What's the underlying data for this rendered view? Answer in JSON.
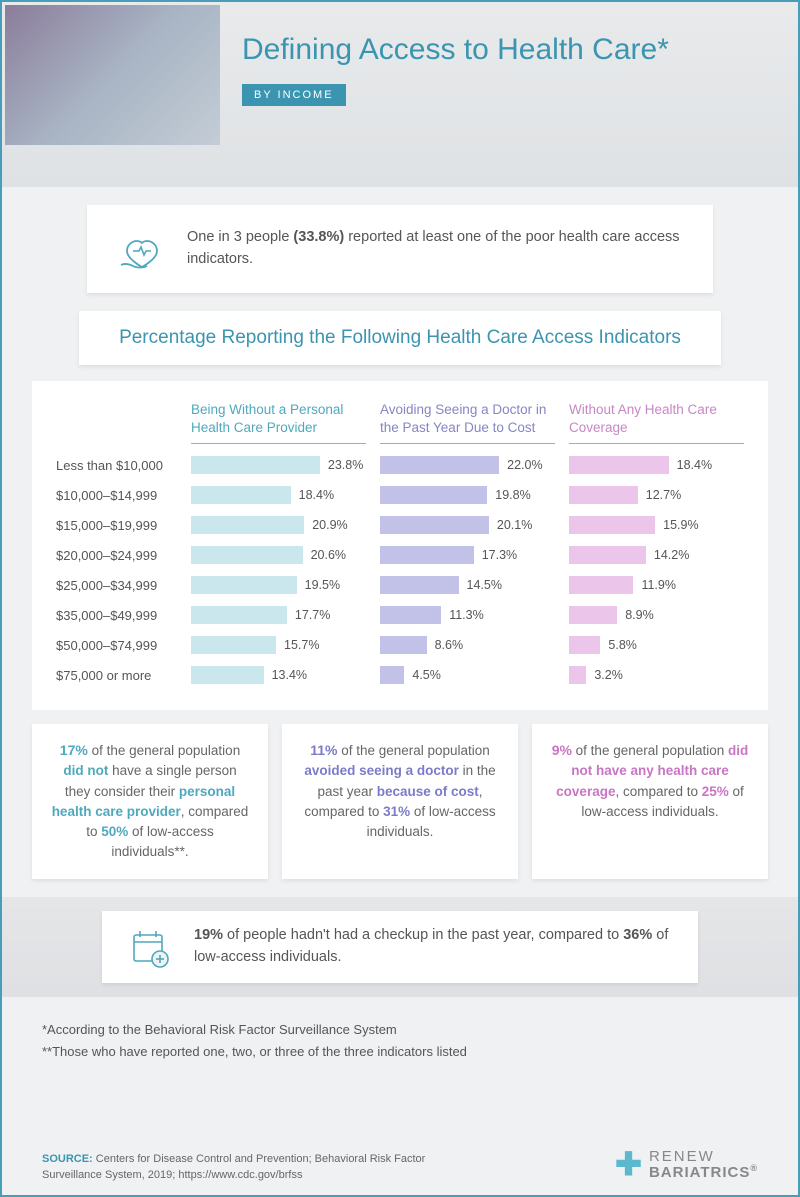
{
  "title": "Defining Access to Health Care*",
  "tag": "BY INCOME",
  "callout1_html": "One in 3 people <b>(33.8%)</b> reported at least one of the poor health care access indicators.",
  "section_title": "Percentage Reporting the Following Health Care Access Indicators",
  "chart": {
    "max_scale": 24,
    "columns": [
      {
        "label": "Being Without a Personal Health Care Provider",
        "bar_color": "#c9e7ed",
        "text_color": "#4fa8bd"
      },
      {
        "label": "Avoiding Seeing a Doctor in the Past Year Due to Cost",
        "bar_color": "#c2c2e8",
        "text_color": "#8585c7"
      },
      {
        "label": "Without Any Health Care Coverage",
        "bar_color": "#ecc6ea",
        "text_color": "#c787c4"
      }
    ],
    "rows": [
      {
        "label": "Less than $10,000",
        "values": [
          23.8,
          22.0,
          18.4
        ]
      },
      {
        "label": "$10,000–$14,999",
        "values": [
          18.4,
          19.8,
          12.7
        ]
      },
      {
        "label": "$15,000–$19,999",
        "values": [
          20.9,
          20.1,
          15.9
        ]
      },
      {
        "label": "$20,000–$24,999",
        "values": [
          20.6,
          17.3,
          14.2
        ]
      },
      {
        "label": "$25,000–$34,999",
        "values": [
          19.5,
          14.5,
          11.9
        ]
      },
      {
        "label": "$35,000–$49,999",
        "values": [
          17.7,
          11.3,
          8.9
        ]
      },
      {
        "label": "$50,000–$74,999",
        "values": [
          15.7,
          8.6,
          5.8
        ]
      },
      {
        "label": "$75,000 or more",
        "values": [
          13.4,
          4.5,
          3.2
        ]
      }
    ]
  },
  "stats": [
    "<span class='big c-teal'>17%</span> of the general population <b class='c-teal'>did not</b> have a single person they consider their <b class='c-teal'>personal health care provider</b>, compared to <b class='c-teal'>50%</b> of low-access individuals**.",
    "<span class='big c-purple'>11%</span> of the general population <b class='c-purple'>avoided seeing a doctor</b> in the past year <b class='c-purple'>because of cost</b>, compared to <b class='c-purple'>31%</b> of low-access individuals.",
    "<span class='big c-pink'>9%</span> of the general population <b class='c-pink'>did not have any health care coverage</b>, compared to <b class='c-pink'>25%</b> of low-access individuals."
  ],
  "checkup_html": "<b>19%</b> of people hadn't had a checkup in the past year, compared to <b>36%</b> of low-access individuals.",
  "footnote1": "*According to the Behavioral Risk Factor Surveillance System",
  "footnote2": "**Those who have reported one, two, or three of the three indicators listed",
  "source_label": "SOURCE:",
  "source_text": "Centers for Disease Control and Prevention; Behavioral Risk Factor Surveillance System, 2019; https://www.cdc.gov/brfss",
  "logo_top": "RENEW",
  "logo_bot": "BARIATRICS"
}
